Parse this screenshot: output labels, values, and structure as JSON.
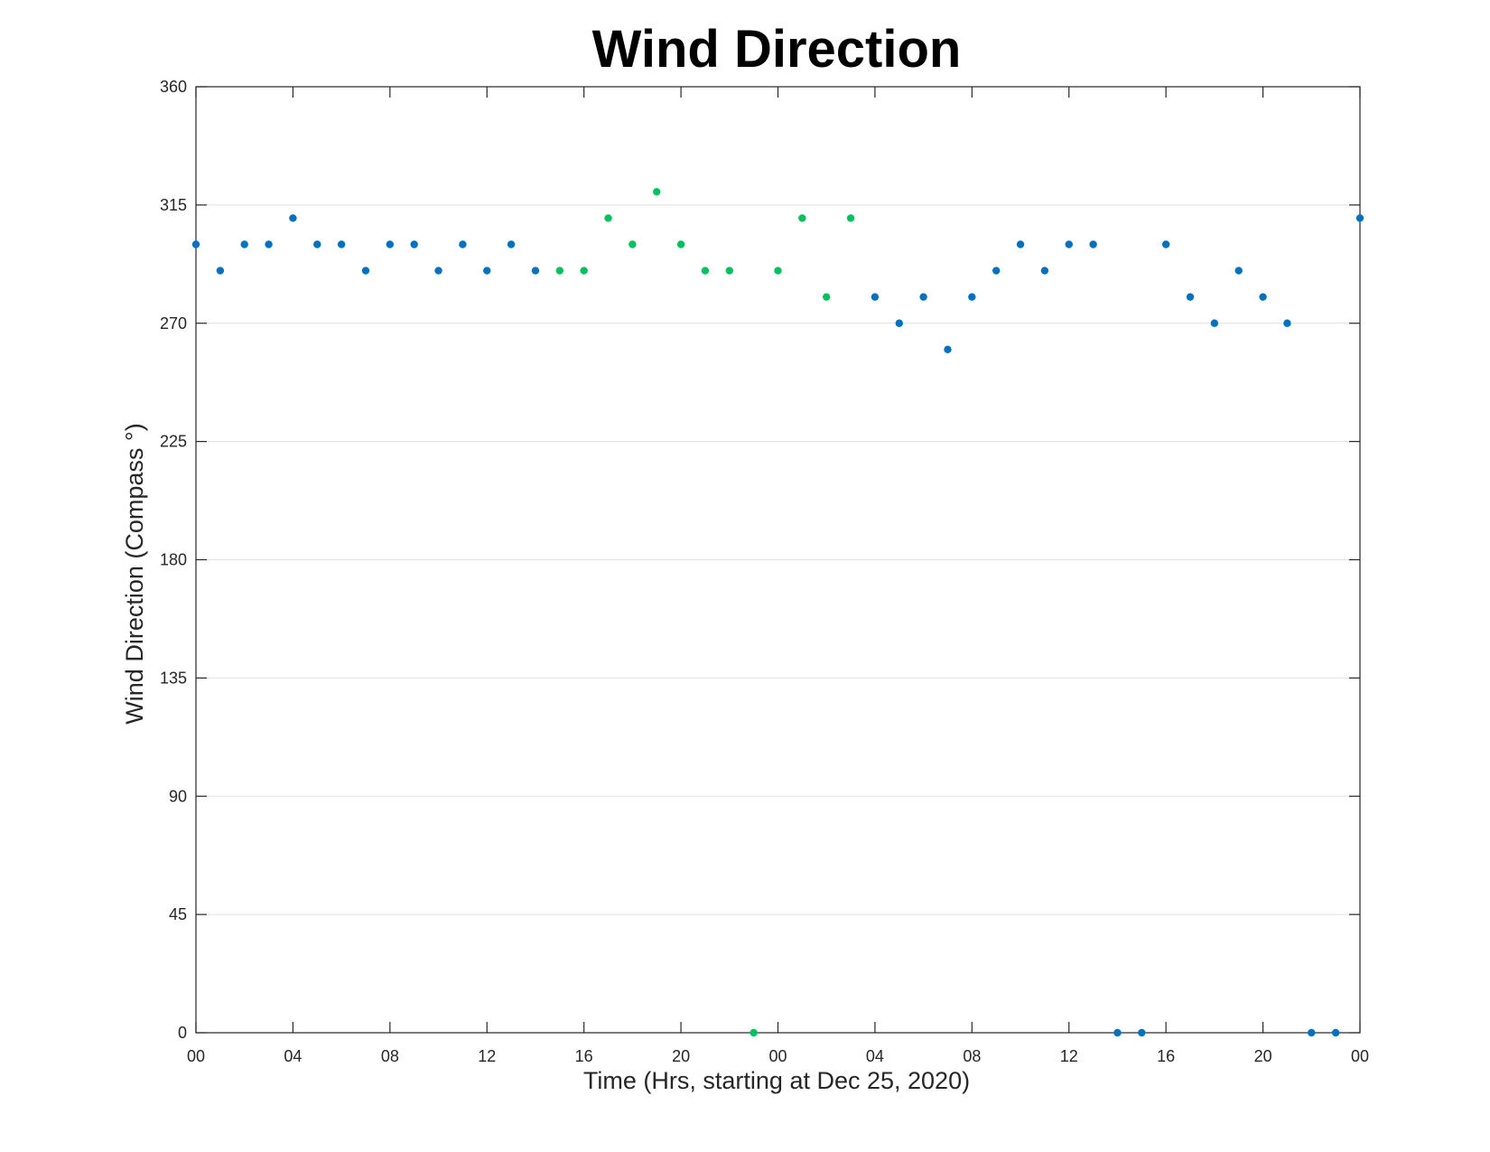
{
  "chart_data": {
    "type": "scatter",
    "title": "Wind Direction",
    "xlabel": "Time (Hrs, starting at Dec 25, 2020)",
    "ylabel": "Wind Direction (Compass °)",
    "x_unit": "hours",
    "xlim": [
      0,
      48
    ],
    "ylim": [
      0,
      360
    ],
    "x_ticks": [
      0,
      4,
      8,
      12,
      16,
      20,
      24,
      28,
      32,
      36,
      40,
      44,
      48
    ],
    "x_tick_labels": [
      "00",
      "04",
      "08",
      "12",
      "16",
      "20",
      "00",
      "04",
      "08",
      "12",
      "16",
      "20",
      "00"
    ],
    "y_ticks": [
      0,
      45,
      90,
      135,
      180,
      225,
      270,
      315,
      360
    ],
    "y_tick_labels": [
      "0",
      "45",
      "90",
      "135",
      "180",
      "225",
      "270",
      "315",
      "360"
    ],
    "grid": true,
    "legend": "none",
    "colors": {
      "blue": "#0072bd",
      "green": "#00c060",
      "axis": "#262626",
      "grid": "#e0e0e0"
    },
    "series": [
      {
        "color": "#0072bd",
        "x": [
          0,
          1,
          2,
          3,
          4,
          5,
          6,
          7,
          8,
          9,
          10,
          11,
          12,
          13,
          14,
          28,
          29,
          30,
          31,
          32,
          33,
          34,
          35,
          36,
          37,
          38,
          39,
          40,
          41,
          42,
          43,
          44,
          45,
          46,
          47,
          48
        ],
        "y": [
          300,
          290,
          300,
          300,
          310,
          300,
          300,
          290,
          300,
          300,
          290,
          300,
          290,
          300,
          290,
          280,
          270,
          280,
          260,
          280,
          290,
          300,
          290,
          300,
          300,
          0,
          0,
          300,
          280,
          270,
          290,
          280,
          270,
          0,
          0,
          310
        ]
      },
      {
        "color": "#00c060",
        "x": [
          15,
          16,
          17,
          18,
          19,
          20,
          21,
          22,
          23,
          24,
          25,
          26,
          27
        ],
        "y": [
          290,
          290,
          310,
          300,
          320,
          300,
          290,
          290,
          0,
          290,
          310,
          280,
          310
        ]
      }
    ]
  }
}
